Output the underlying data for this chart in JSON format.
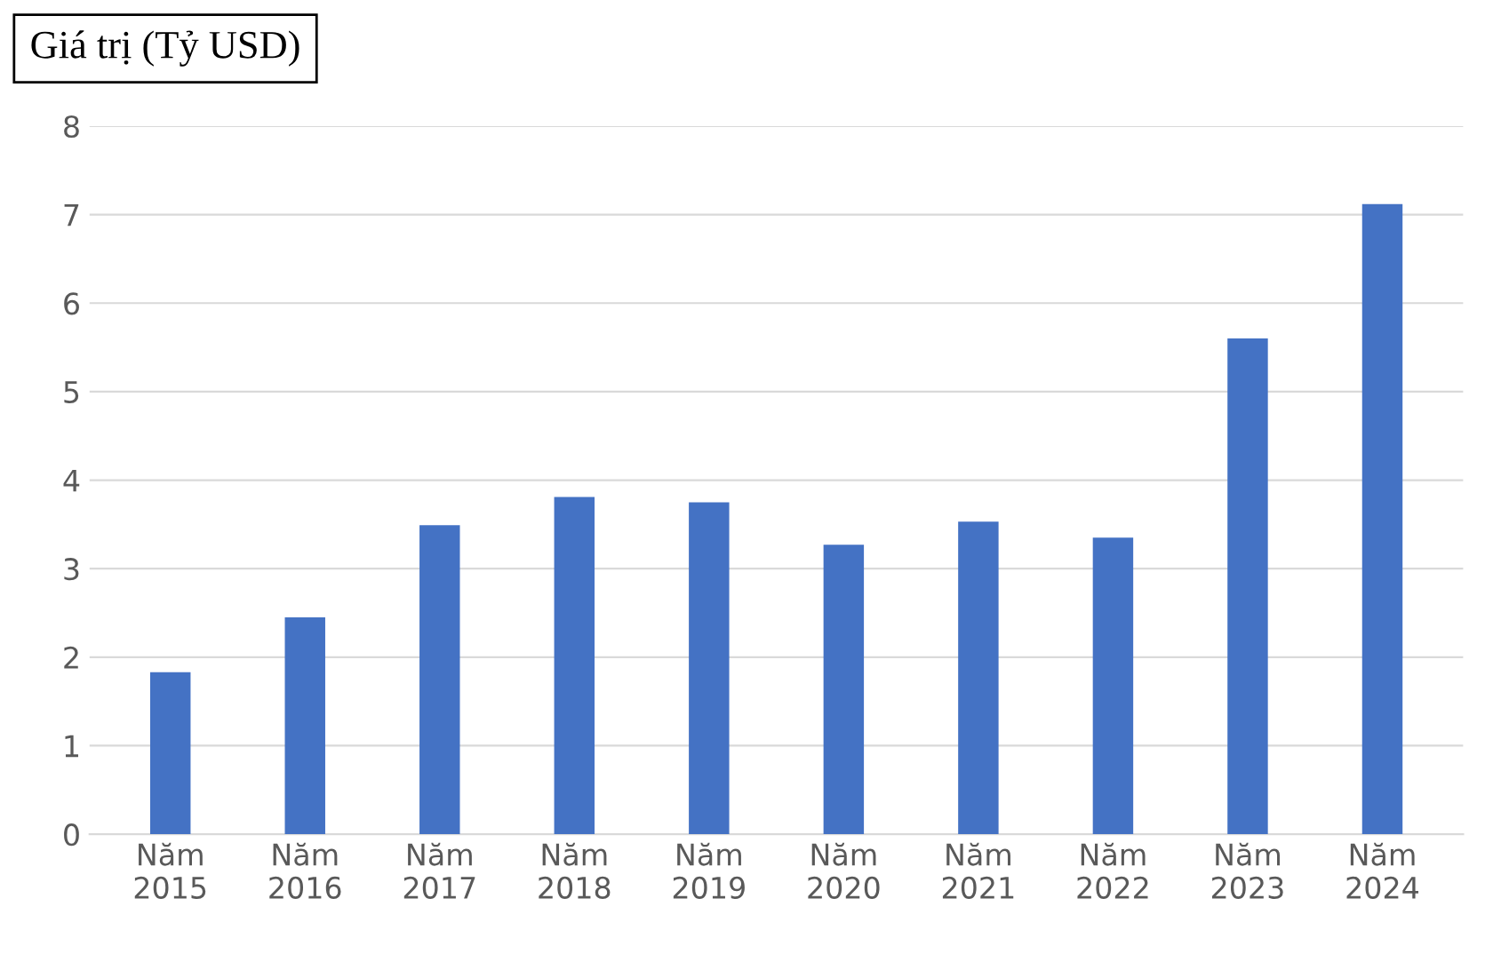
{
  "chart_data": {
    "type": "bar",
    "ylabel": "Giá trị (Tỷ USD)",
    "categories": [
      "Năm\n2015",
      "Năm\n2016",
      "Năm\n2017",
      "Năm\n2018",
      "Năm\n2019",
      "Năm\n2020",
      "Năm\n2021",
      "Năm\n2022",
      "Năm\n2023",
      "Năm\n2024"
    ],
    "values": [
      1.83,
      2.45,
      3.49,
      3.81,
      3.75,
      3.27,
      3.53,
      3.35,
      5.6,
      7.12
    ],
    "color": "#4472c4",
    "ylim": [
      0,
      8
    ],
    "yticks": [
      0,
      1,
      2,
      3,
      4,
      5,
      6,
      7,
      8
    ],
    "grid": "y"
  }
}
